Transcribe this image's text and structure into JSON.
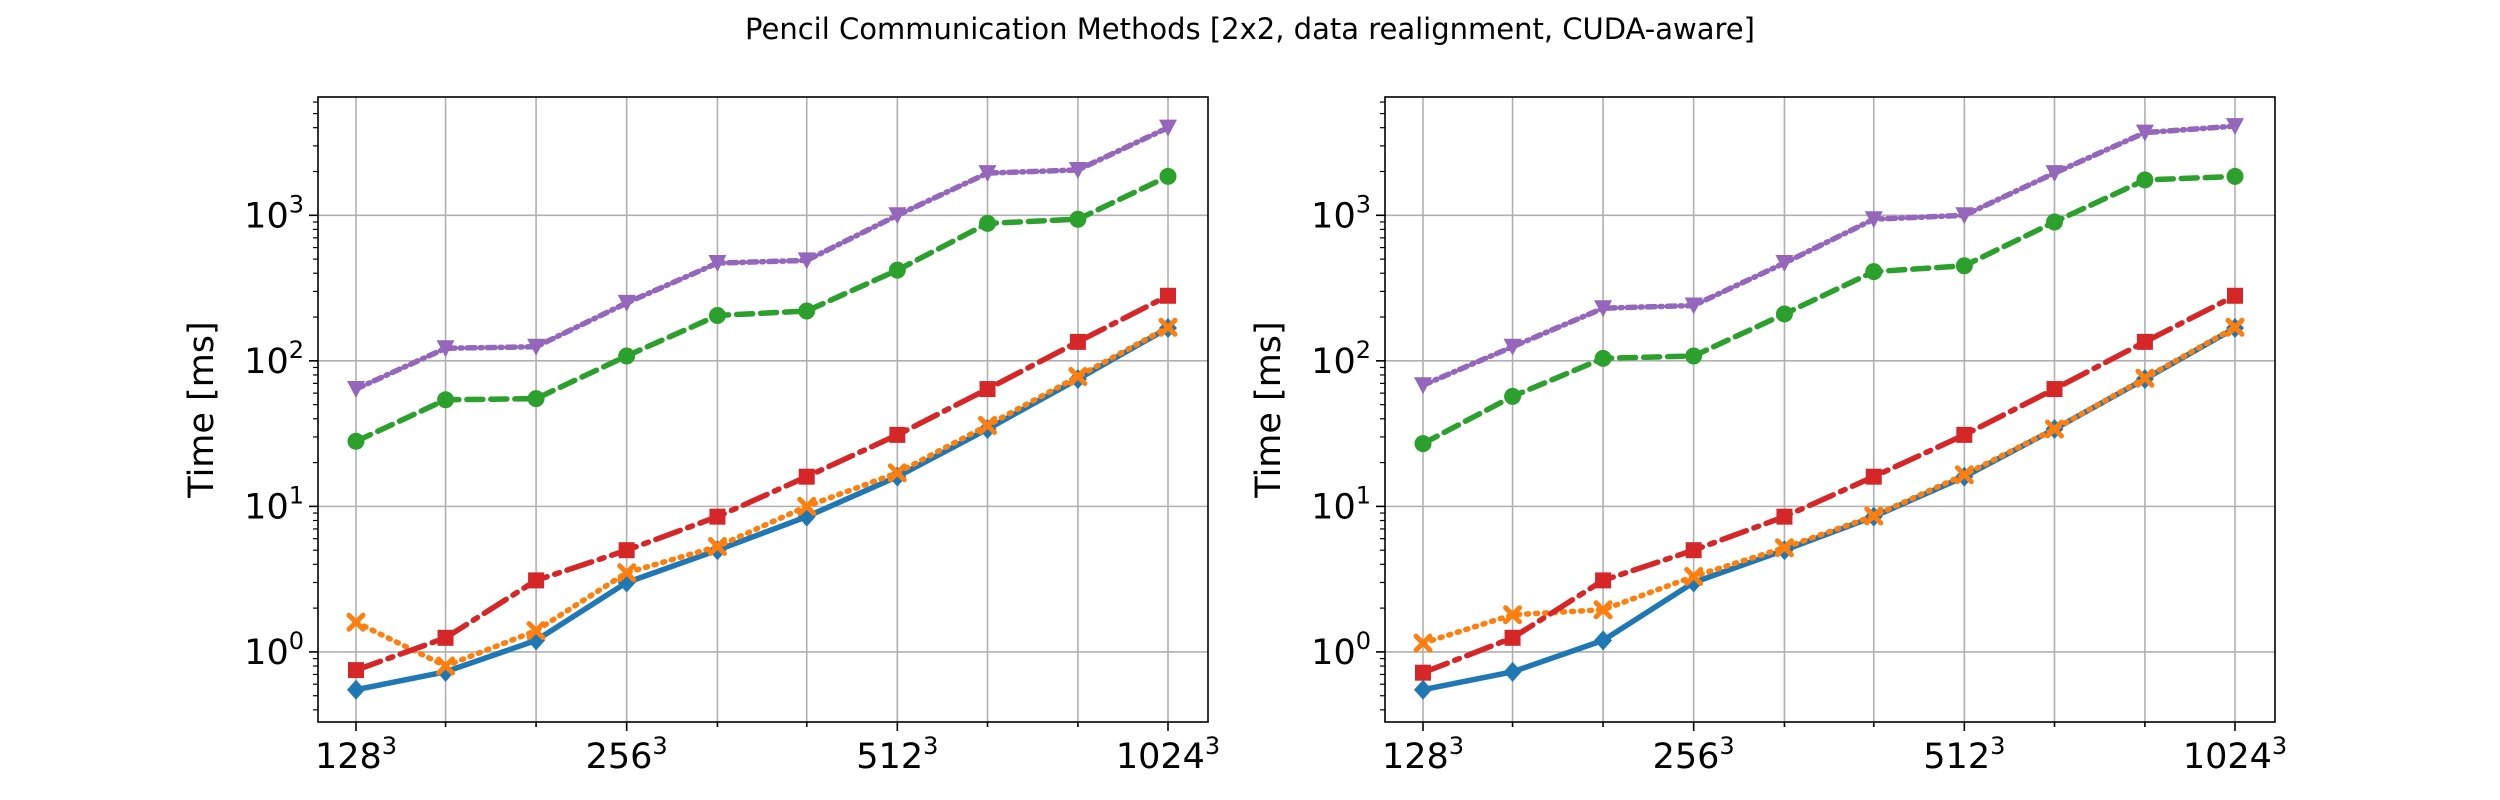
{
  "figure": {
    "title": "Pencil Communication Methods [2x2, data realignment, CUDA-aware]"
  },
  "chart_data": [
    {
      "type": "line",
      "title": "",
      "xlabel": "",
      "ylabel": "Time [ms]",
      "xscale": "log2",
      "yscale": "log",
      "grid": true,
      "legend": "none",
      "x": [
        128,
        161,
        203,
        256,
        323,
        406,
        512,
        645,
        813,
        1024
      ],
      "xticks": [
        {
          "base": "128",
          "exp": "3",
          "value": 128
        },
        {
          "base": "256",
          "exp": "3",
          "value": 256
        },
        {
          "base": "512",
          "exp": "3",
          "value": 512
        },
        {
          "base": "1024",
          "exp": "3",
          "value": 1024
        }
      ],
      "yticks": [
        {
          "base": "10",
          "exp": "0",
          "value": 1
        },
        {
          "base": "10",
          "exp": "1",
          "value": 10
        },
        {
          "base": "10",
          "exp": "2",
          "value": 100
        },
        {
          "base": "10",
          "exp": "3",
          "value": 1000
        }
      ],
      "ylim": [
        0.33,
        6500
      ],
      "series": [
        {
          "color": "#1f77b4",
          "dash": "",
          "marker": "diamond",
          "values": [
            0.55,
            0.73,
            1.2,
            3.0,
            5.0,
            8.5,
            16,
            34,
            75,
            168
          ]
        },
        {
          "color": "#ff7f0e",
          "dash": "2,7",
          "marker": "x",
          "values": [
            1.6,
            0.8,
            1.4,
            3.5,
            5.3,
            10,
            17,
            36,
            78,
            170
          ]
        },
        {
          "color": "#d62728",
          "dash": "26,8,5,8",
          "marker": "square",
          "values": [
            0.75,
            1.25,
            3.1,
            5.0,
            8.5,
            16,
            31,
            64,
            135,
            280
          ]
        },
        {
          "color": "#2ca02c",
          "dash": "16,8",
          "marker": "circle",
          "values": [
            28,
            54,
            55,
            108,
            205,
            220,
            420,
            880,
            940,
            1850
          ]
        },
        {
          "color": "#9467bd",
          "dash": "8,5,2,5",
          "marker": "triangle-down",
          "values": [
            64,
            122,
            125,
            250,
            470,
            490,
            1000,
            1950,
            2050,
            4000
          ]
        }
      ]
    },
    {
      "type": "line",
      "title": "",
      "xlabel": "",
      "ylabel": "Time [ms]",
      "xscale": "log2",
      "yscale": "log",
      "grid": true,
      "legend": "none",
      "x": [
        128,
        161,
        203,
        256,
        323,
        406,
        512,
        645,
        813,
        1024
      ],
      "xticks": [
        {
          "base": "128",
          "exp": "3",
          "value": 128
        },
        {
          "base": "256",
          "exp": "3",
          "value": 256
        },
        {
          "base": "512",
          "exp": "3",
          "value": 512
        },
        {
          "base": "1024",
          "exp": "3",
          "value": 1024
        }
      ],
      "yticks": [
        {
          "base": "10",
          "exp": "0",
          "value": 1
        },
        {
          "base": "10",
          "exp": "1",
          "value": 10
        },
        {
          "base": "10",
          "exp": "2",
          "value": 100
        },
        {
          "base": "10",
          "exp": "3",
          "value": 1000
        }
      ],
      "ylim": [
        0.33,
        6500
      ],
      "series": [
        {
          "color": "#1f77b4",
          "dash": "",
          "marker": "diamond",
          "values": [
            0.55,
            0.73,
            1.2,
            3.0,
            5.0,
            8.5,
            16,
            34,
            75,
            168
          ]
        },
        {
          "color": "#ff7f0e",
          "dash": "2,7",
          "marker": "x",
          "values": [
            1.15,
            1.8,
            1.95,
            3.3,
            5.2,
            8.6,
            16.5,
            34,
            76,
            170
          ]
        },
        {
          "color": "#d62728",
          "dash": "26,8,5,8",
          "marker": "square",
          "values": [
            0.72,
            1.25,
            3.1,
            5.0,
            8.5,
            16,
            31,
            64,
            135,
            280
          ]
        },
        {
          "color": "#2ca02c",
          "dash": "16,8",
          "marker": "circle",
          "values": [
            27,
            57,
            104,
            108,
            210,
            410,
            450,
            900,
            1750,
            1850
          ]
        },
        {
          "color": "#9467bd",
          "dash": "8,5,2,5",
          "marker": "triangle-down",
          "values": [
            68,
            125,
            230,
            240,
            470,
            940,
            1000,
            1950,
            3700,
            4100
          ]
        }
      ]
    }
  ]
}
